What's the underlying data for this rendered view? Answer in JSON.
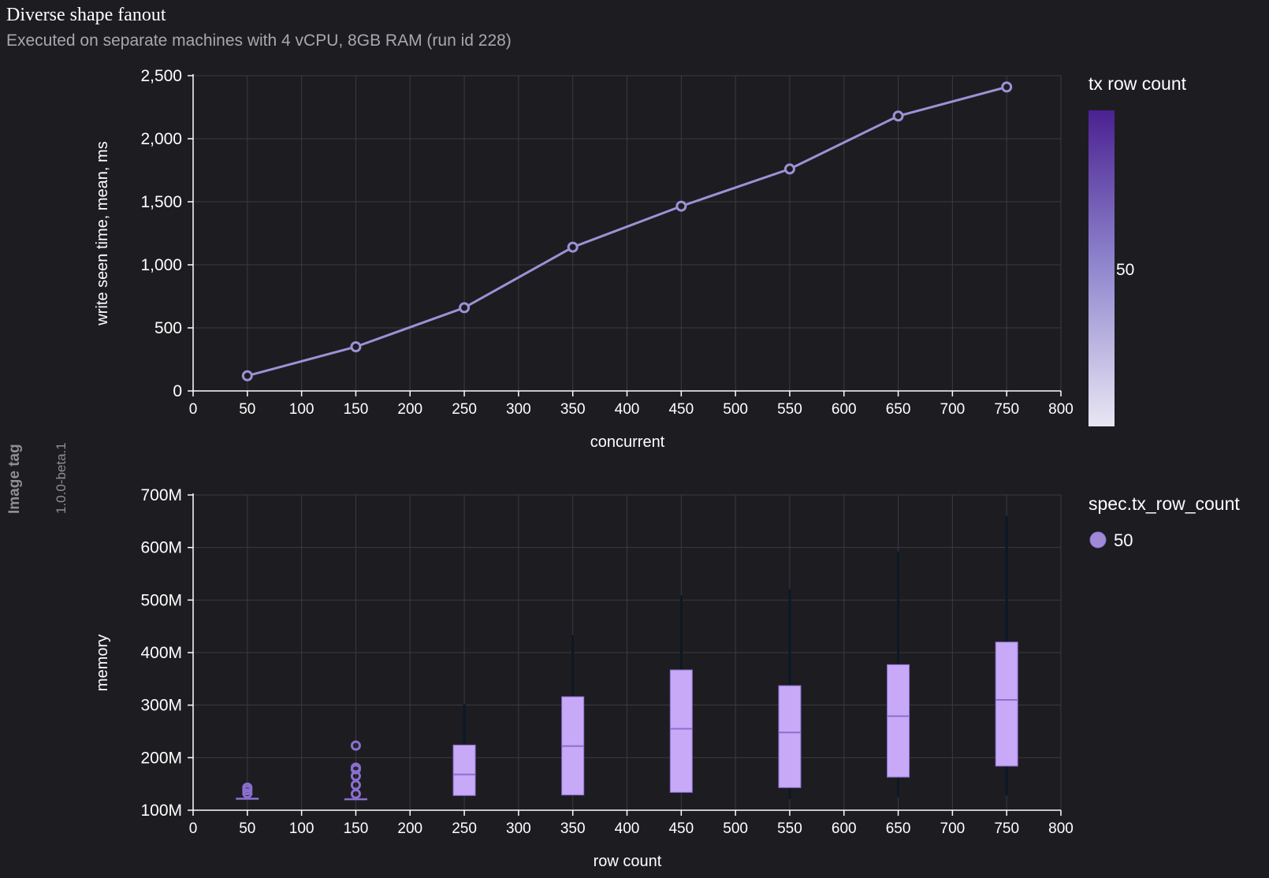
{
  "header": {
    "title": "Diverse shape fanout",
    "subtitle": "Executed on separate machines with 4 vCPU, 8GB RAM (run id 228)"
  },
  "facet": {
    "header": "Image tag",
    "value": "1.0.0-beta.1"
  },
  "colors": {
    "background": "#1d1d21",
    "grid": "#3a3a40",
    "line": "#9c92d6",
    "box_fill": "#c7a9f7",
    "box_stroke": "#8a6fcf",
    "whisker": "#0c1826",
    "legend_dot": "#a08ad8"
  },
  "chart_data": [
    {
      "type": "line",
      "title": "",
      "xlabel": "concurrent",
      "ylabel": "write seen time, mean, ms",
      "xlim": [
        0,
        800
      ],
      "ylim": [
        0,
        2500
      ],
      "x_ticks": [
        0,
        50,
        100,
        150,
        200,
        250,
        300,
        350,
        400,
        450,
        500,
        550,
        600,
        650,
        700,
        750,
        800
      ],
      "x_tick_labels": [
        "0",
        "50",
        "100",
        "150",
        "200",
        "250",
        "300",
        "350",
        "400",
        "450",
        "500",
        "550",
        "600",
        "650",
        "700",
        "750",
        "800"
      ],
      "y_ticks": [
        0,
        500,
        1000,
        1500,
        2000,
        2500
      ],
      "y_tick_labels": [
        "0",
        "500",
        "1,000",
        "1,500",
        "2,000",
        "2,500"
      ],
      "grid": true,
      "series": [
        {
          "name": "50",
          "x": [
            50,
            150,
            250,
            350,
            450,
            550,
            650,
            750
          ],
          "y": [
            120,
            350,
            660,
            1140,
            1465,
            1760,
            2180,
            2410
          ]
        }
      ],
      "legend": {
        "title": "tx row count",
        "kind": "color-gradient",
        "label": "50",
        "position": "right",
        "gradient_colors": [
          "#4b2191",
          "#9188cf",
          "#e9e6f3"
        ]
      }
    },
    {
      "type": "box",
      "title": "",
      "xlabel": "row count",
      "ylabel": "memory",
      "xlim": [
        0,
        800
      ],
      "ylim": [
        100,
        700
      ],
      "units": "M",
      "x_ticks": [
        0,
        50,
        100,
        150,
        200,
        250,
        300,
        350,
        400,
        450,
        500,
        550,
        600,
        650,
        700,
        750,
        800
      ],
      "x_tick_labels": [
        "0",
        "50",
        "100",
        "150",
        "200",
        "250",
        "300",
        "350",
        "400",
        "450",
        "500",
        "550",
        "600",
        "650",
        "700",
        "750",
        "800"
      ],
      "y_ticks": [
        100,
        200,
        300,
        400,
        500,
        600,
        700
      ],
      "y_tick_labels": [
        "100M",
        "200M",
        "300M",
        "400M",
        "500M",
        "600M",
        "700M"
      ],
      "grid": true,
      "boxes": [
        {
          "x": 50,
          "min": 122,
          "q1": 122,
          "median": 122,
          "q3": 123,
          "max": 123,
          "outliers": [
            132,
            138,
            143
          ]
        },
        {
          "x": 150,
          "min": 121,
          "q1": 121,
          "median": 121,
          "q3": 122,
          "max": 122,
          "outliers": [
            131,
            148,
            165,
            178,
            181,
            223
          ]
        },
        {
          "x": 250,
          "min": 128,
          "q1": 128,
          "median": 168,
          "q3": 224,
          "max": 302,
          "outliers": []
        },
        {
          "x": 350,
          "min": 129,
          "q1": 129,
          "median": 222,
          "q3": 316,
          "max": 433,
          "outliers": []
        },
        {
          "x": 450,
          "min": 134,
          "q1": 134,
          "median": 255,
          "q3": 367,
          "max": 509,
          "outliers": []
        },
        {
          "x": 550,
          "min": 121,
          "q1": 143,
          "median": 248,
          "q3": 337,
          "max": 521,
          "outliers": []
        },
        {
          "x": 650,
          "min": 125,
          "q1": 163,
          "median": 279,
          "q3": 377,
          "max": 592,
          "outliers": []
        },
        {
          "x": 750,
          "min": 128,
          "q1": 184,
          "median": 310,
          "q3": 420,
          "max": 660,
          "outliers": []
        }
      ],
      "legend": {
        "title": "spec.tx_row_count",
        "kind": "symbol",
        "label": "50",
        "position": "right"
      }
    }
  ]
}
